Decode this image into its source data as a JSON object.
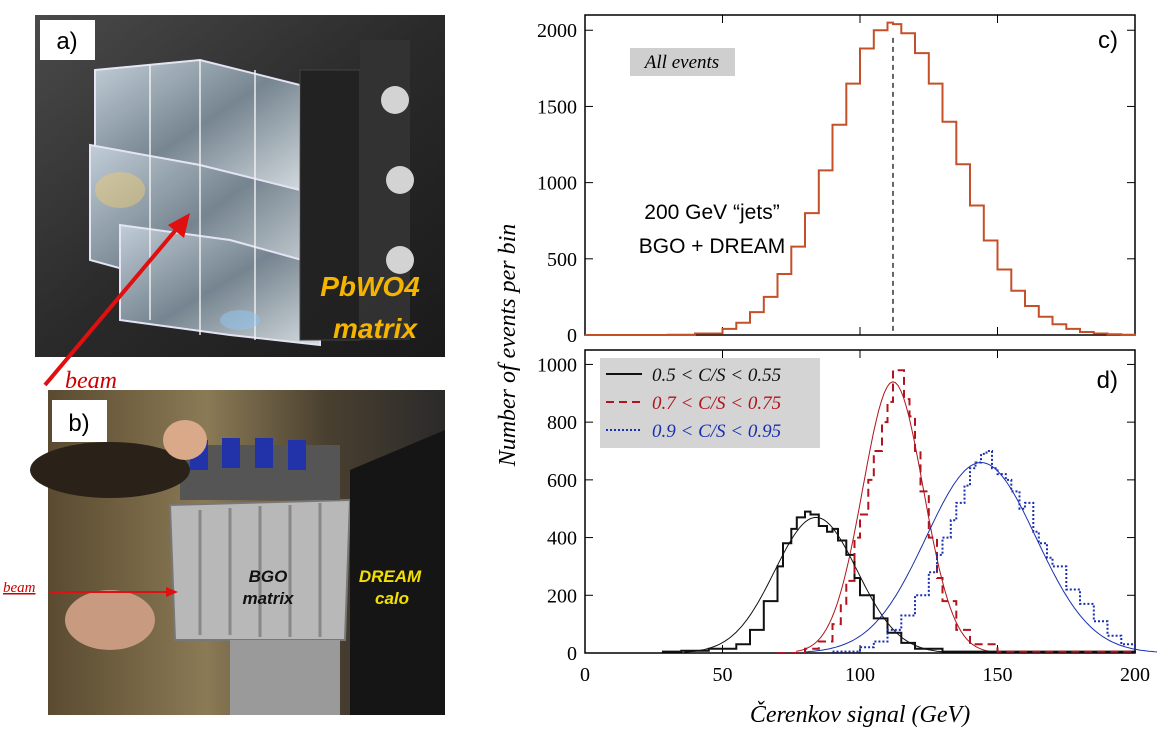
{
  "panels": {
    "a": {
      "label": "a)",
      "caption_line1": "PbWO4",
      "caption_line2": "matrix",
      "beam": "beam"
    },
    "b": {
      "label": "b)",
      "beam": "beam",
      "bgo_line1": "BGO",
      "bgo_line2": "matrix",
      "dream_line1": "DREAM",
      "dream_line2": "calo"
    },
    "c": {
      "label": "c)",
      "box_text": "All events",
      "annotation_line1": "200 GeV “jets”",
      "annotation_line2": "BGO + DREAM"
    },
    "d": {
      "label": "d)"
    }
  },
  "colors": {
    "orange": "#c4502a",
    "black": "#111111",
    "red": "#b0141e",
    "blue": "#1a2fb0",
    "photo_text": "#f5b400"
  },
  "chart_data": [
    {
      "type": "line",
      "panel": "c",
      "title": "",
      "xlabel": "",
      "ylabel": "Number of events per bin",
      "xlim": [
        0,
        200
      ],
      "ylim": [
        0,
        2100
      ],
      "yticks": [
        0,
        500,
        1000,
        1500,
        2000
      ],
      "mean_line_x": 112,
      "series": [
        {
          "name": "All events",
          "color": "#c4502a",
          "x": [
            0,
            10,
            20,
            30,
            40,
            50,
            55,
            60,
            65,
            70,
            75,
            80,
            85,
            90,
            95,
            100,
            105,
            110,
            112,
            115,
            120,
            125,
            130,
            135,
            140,
            145,
            150,
            155,
            160,
            165,
            170,
            175,
            180,
            185,
            190,
            195,
            200
          ],
          "values": [
            0,
            0,
            0,
            2,
            10,
            40,
            80,
            150,
            250,
            400,
            580,
            800,
            1080,
            1380,
            1650,
            1880,
            2000,
            2050,
            2040,
            1980,
            1850,
            1650,
            1400,
            1120,
            850,
            620,
            430,
            290,
            190,
            120,
            70,
            40,
            20,
            10,
            5,
            2,
            0
          ]
        }
      ]
    },
    {
      "type": "line",
      "panel": "d",
      "title": "",
      "xlabel": "Čerenkov signal (GeV)",
      "ylabel": "Number of events per bin",
      "xlim": [
        0,
        200
      ],
      "ylim": [
        0,
        1050
      ],
      "xticks": [
        0,
        50,
        100,
        150,
        200
      ],
      "yticks": [
        0,
        200,
        400,
        600,
        800,
        1000
      ],
      "legend": "top-left",
      "series": [
        {
          "name": "0.5 < C/S < 0.55",
          "color": "#111111",
          "style": "solid",
          "fit": {
            "mean": 84,
            "sigma": 15,
            "amp": 470
          },
          "x": [
            28,
            35,
            45,
            55,
            60,
            65,
            70,
            72,
            75,
            77,
            80,
            82,
            85,
            88,
            90,
            92,
            95,
            98,
            100,
            105,
            110,
            115,
            120,
            130,
            200
          ],
          "values": [
            5,
            8,
            15,
            30,
            80,
            180,
            300,
            380,
            430,
            470,
            490,
            480,
            440,
            420,
            430,
            390,
            340,
            260,
            200,
            120,
            70,
            35,
            15,
            5,
            0
          ]
        },
        {
          "name": "0.7 < C/S < 0.75",
          "color": "#b0141e",
          "style": "dashed",
          "fit": {
            "mean": 112,
            "sigma": 11,
            "amp": 940
          },
          "x": [
            70,
            80,
            85,
            90,
            93,
            95,
            98,
            100,
            103,
            105,
            108,
            110,
            112,
            114,
            116,
            118,
            120,
            122,
            125,
            128,
            130,
            135,
            140,
            150,
            200
          ],
          "values": [
            0,
            15,
            40,
            100,
            170,
            250,
            400,
            480,
            600,
            700,
            800,
            870,
            980,
            980,
            880,
            820,
            700,
            560,
            400,
            260,
            180,
            80,
            30,
            5,
            0
          ]
        },
        {
          "name": "0.9 < C/S < 0.95",
          "color": "#1a2fb0",
          "style": "dotted",
          "fit": {
            "mean": 144,
            "sigma": 20,
            "amp": 660
          },
          "x": [
            90,
            100,
            105,
            110,
            115,
            120,
            125,
            128,
            130,
            133,
            135,
            138,
            140,
            142,
            144,
            146,
            148,
            150,
            153,
            155,
            158,
            160,
            163,
            165,
            168,
            170,
            175,
            180,
            185,
            190,
            195,
            200
          ],
          "values": [
            5,
            20,
            40,
            80,
            130,
            200,
            280,
            340,
            400,
            460,
            520,
            580,
            640,
            660,
            690,
            700,
            640,
            620,
            600,
            560,
            500,
            520,
            420,
            380,
            330,
            300,
            220,
            170,
            110,
            60,
            30,
            10
          ]
        }
      ]
    }
  ]
}
